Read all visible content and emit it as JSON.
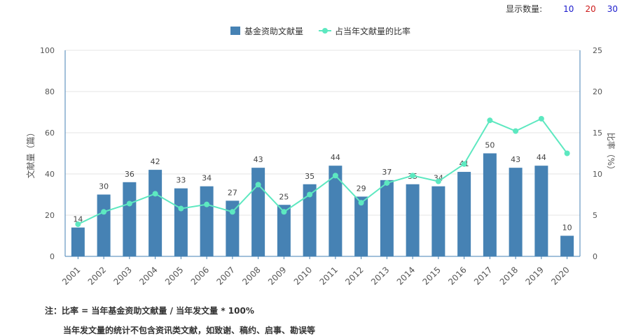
{
  "controls": {
    "label": "显示数量:",
    "options": [
      {
        "text": "10",
        "color": "#1a1acc"
      },
      {
        "text": "20",
        "color": "#cc1a1a"
      },
      {
        "text": "30",
        "color": "#1a1acc"
      }
    ]
  },
  "notes": {
    "line1": "注：比率 = 当年基金资助文献量 / 当年发文量 * 100%",
    "line2": "当年发文量的统计不包含资讯类文献，如致谢、稿约、启事、勘误等"
  },
  "chart_data": {
    "type": "bar",
    "categories": [
      "2001",
      "2002",
      "2003",
      "2004",
      "2005",
      "2006",
      "2007",
      "2008",
      "2009",
      "2010",
      "2011",
      "2012",
      "2013",
      "2014",
      "2015",
      "2016",
      "2017",
      "2018",
      "2019",
      "2020"
    ],
    "series": [
      {
        "name": "基金资助文献量",
        "type": "bar",
        "axis": "left",
        "color": "#4682b4",
        "values": [
          14,
          30,
          36,
          42,
          33,
          34,
          27,
          43,
          25,
          35,
          44,
          29,
          37,
          35,
          34,
          41,
          50,
          43,
          44,
          10
        ]
      },
      {
        "name": "占当年文献量的比率",
        "type": "line",
        "axis": "right",
        "color": "#5de8c0",
        "values": [
          3.9,
          5.4,
          6.4,
          7.6,
          5.8,
          6.3,
          5.4,
          8.7,
          5.4,
          7.5,
          9.8,
          6.5,
          8.9,
          9.8,
          9.1,
          11.2,
          16.5,
          15.2,
          16.7,
          12.5
        ]
      }
    ],
    "ylabel": "文献量（篇）",
    "y2label": "比率（%）",
    "ylim": [
      0,
      100
    ],
    "yticks": [
      0,
      20,
      40,
      60,
      80,
      100
    ],
    "y2lim": [
      0,
      25
    ],
    "y2ticks": [
      0,
      5,
      10,
      15,
      20,
      25
    ],
    "grid": true,
    "legend": "top-center"
  }
}
